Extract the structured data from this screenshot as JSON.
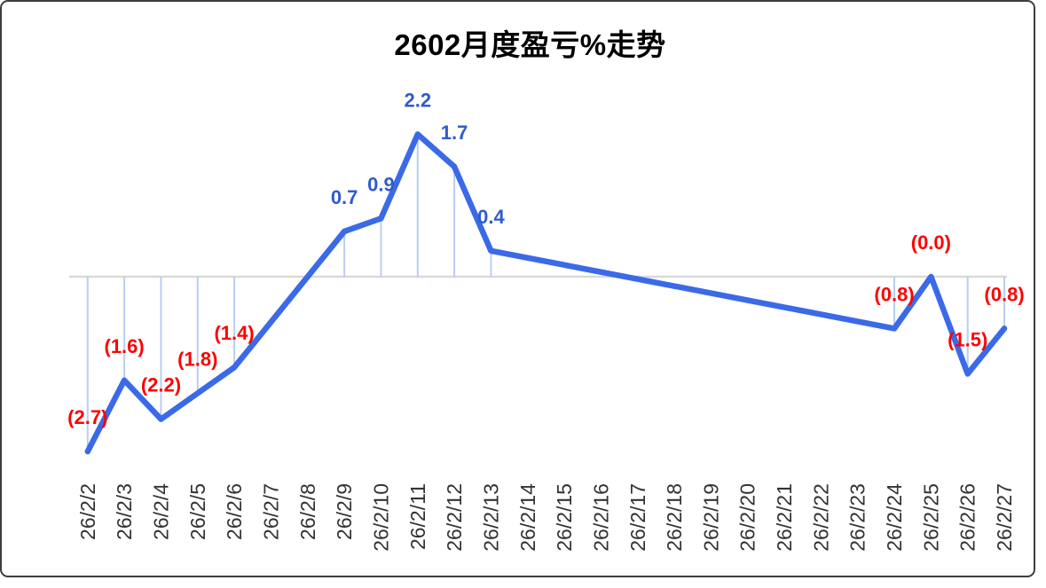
{
  "window": {
    "background": "#ffffff",
    "border_color": "#3d3d3d"
  },
  "chart_data": {
    "type": "line",
    "title": "2602月度盈亏%走势",
    "xlabel": "",
    "ylabel": "",
    "ylim": [
      -3.2,
      3.3
    ],
    "grid": false,
    "legend_position": "none",
    "x": [
      "26/2/2",
      "26/2/3",
      "26/2/4",
      "26/2/5",
      "26/2/6",
      "26/2/7",
      "26/2/8",
      "26/2/9",
      "26/2/10",
      "26/2/11",
      "26/2/12",
      "26/2/13",
      "26/2/14",
      "26/2/15",
      "26/2/16",
      "26/2/17",
      "26/2/18",
      "26/2/19",
      "26/2/20",
      "26/2/21",
      "26/2/22",
      "26/2/23",
      "26/2/24",
      "26/2/25",
      "26/2/26",
      "26/2/27"
    ],
    "series": [
      {
        "name": "月度盈亏%",
        "values": [
          -2.7,
          -1.6,
          -2.2,
          -1.8,
          -1.4,
          null,
          null,
          0.7,
          0.9,
          2.2,
          1.7,
          0.4,
          null,
          null,
          null,
          null,
          null,
          null,
          null,
          null,
          null,
          null,
          -0.8,
          -0.0,
          -1.5,
          -0.8
        ]
      }
    ],
    "data_labels": [
      "(2.7)",
      "(1.6)",
      "(2.2)",
      "(1.8)",
      "(1.4)",
      null,
      null,
      "0.7",
      "0.9",
      "2.2",
      "1.7",
      "0.4",
      null,
      null,
      null,
      null,
      null,
      null,
      null,
      null,
      null,
      null,
      "(0.8)",
      "(0.0)",
      "(1.5)",
      "(0.8)"
    ],
    "notes": "gaps (no markers) at 26/2/7-26/2/8 and 26/2/14-26/2/23; line interpolates straight across gaps; droplines connect each data point to the zero axis",
    "styles": {
      "line_color": "#3b6ae8",
      "dropline_color": "#b9cdf3",
      "zero_axis_color": "#d9d9d9",
      "positive_label_color": "#2f5bcb",
      "negative_label_color": "#fe0000",
      "axis_label_color": "#333333",
      "title_color": "#000000"
    }
  }
}
